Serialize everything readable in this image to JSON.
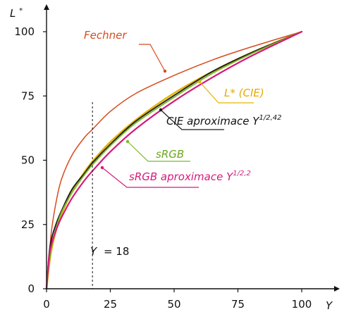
{
  "chart_data": {
    "type": "line",
    "x_axis": {
      "label": "Y",
      "range": [
        0,
        100
      ],
      "ticks": [
        0,
        25,
        50,
        75,
        100
      ]
    },
    "y_axis": {
      "label": "L",
      "label_superscript": "*",
      "range": [
        0,
        100
      ],
      "ticks": [
        0,
        25,
        50,
        75,
        100
      ]
    },
    "grid": false,
    "legend": "none",
    "series": [
      {
        "id": "fechner",
        "color": "#d64b1e",
        "width": 1.5,
        "points": [
          [
            0,
            0
          ],
          [
            0.5,
            5
          ],
          [
            1,
            12
          ],
          [
            2,
            23
          ],
          [
            4,
            35
          ],
          [
            6,
            43
          ],
          [
            10,
            52
          ],
          [
            15,
            59
          ],
          [
            18,
            62
          ],
          [
            25,
            69
          ],
          [
            35,
            76
          ],
          [
            50,
            83
          ],
          [
            65,
            89
          ],
          [
            80,
            94
          ],
          [
            100,
            100
          ]
        ]
      },
      {
        "id": "cie-lstar",
        "color": "#e6b400",
        "width": 2.5,
        "points": [
          [
            0,
            0
          ],
          [
            1,
            9
          ],
          [
            2,
            15.5
          ],
          [
            4,
            23.7
          ],
          [
            6,
            29.4
          ],
          [
            10,
            37.8
          ],
          [
            15,
            45.6
          ],
          [
            18,
            49.5
          ],
          [
            25,
            57.1
          ],
          [
            35,
            65.7
          ],
          [
            50,
            76.1
          ],
          [
            65,
            84.5
          ],
          [
            80,
            91.7
          ],
          [
            100,
            100
          ]
        ]
      },
      {
        "id": "cie-approx",
        "color": "#1a1a1a",
        "width": 1.8,
        "points": [
          [
            0,
            0
          ],
          [
            1,
            13.4
          ],
          [
            2,
            19.6
          ],
          [
            4,
            25.9
          ],
          [
            6,
            30.6
          ],
          [
            10,
            38.7
          ],
          [
            15,
            45.1
          ],
          [
            18,
            49.0
          ],
          [
            25,
            56.2
          ],
          [
            35,
            65.2
          ],
          [
            50,
            75.2
          ],
          [
            65,
            84.5
          ],
          [
            80,
            91.7
          ],
          [
            100,
            100
          ]
        ]
      },
      {
        "id": "srgb",
        "color": "#7ab929",
        "width": 1.8,
        "points": [
          [
            0,
            0
          ],
          [
            0.3,
            4
          ],
          [
            1,
            9.5
          ],
          [
            2,
            16.5
          ],
          [
            4,
            24.5
          ],
          [
            6,
            30
          ],
          [
            10,
            37.4
          ],
          [
            15,
            44.5
          ],
          [
            18,
            48.2
          ],
          [
            25,
            55.6
          ],
          [
            35,
            64.5
          ],
          [
            50,
            74.5
          ],
          [
            65,
            83.8
          ],
          [
            80,
            91.3
          ],
          [
            100,
            100
          ]
        ]
      },
      {
        "id": "srgb-approx",
        "color": "#d61a7a",
        "width": 2.2,
        "points": [
          [
            0,
            0
          ],
          [
            1,
            12.4
          ],
          [
            2,
            17.5
          ],
          [
            4,
            23.5
          ],
          [
            6,
            28.0
          ],
          [
            10,
            35.3
          ],
          [
            15,
            42.3
          ],
          [
            18,
            45.8
          ],
          [
            25,
            53.3
          ],
          [
            35,
            62.2
          ],
          [
            50,
            73.0
          ],
          [
            65,
            82.2
          ],
          [
            80,
            90.4
          ],
          [
            100,
            100
          ]
        ]
      }
    ],
    "reference_line": {
      "x": 18,
      "label_text": "Y",
      "label_value": "= 18"
    },
    "annotations": [
      {
        "id": "fechner-label",
        "text": "Fechner",
        "superscript": "",
        "color": "#d64b1e",
        "italic": true,
        "pointer_color": "#d64b1e"
      },
      {
        "id": "cie-lstar-label",
        "text": "L* (CIE)",
        "superscript": "",
        "color": "#e6a800",
        "italic": true,
        "pointer_color": "#e6b400"
      },
      {
        "id": "cie-approx-label",
        "text": "CIE aproximace Y",
        "superscript": "1/2,42",
        "color": "#111111",
        "italic": true,
        "pointer_color": "#1a1a1a"
      },
      {
        "id": "srgb-label",
        "text": "sRGB",
        "superscript": "",
        "color": "#6aa81e",
        "italic": true,
        "pointer_color": "#7ab929"
      },
      {
        "id": "srgb-approx-label",
        "text": "sRGB aproximace Y",
        "superscript": "1/2,2",
        "color": "#d61a7a",
        "italic": true,
        "pointer_color": "#d61a7a"
      }
    ]
  }
}
